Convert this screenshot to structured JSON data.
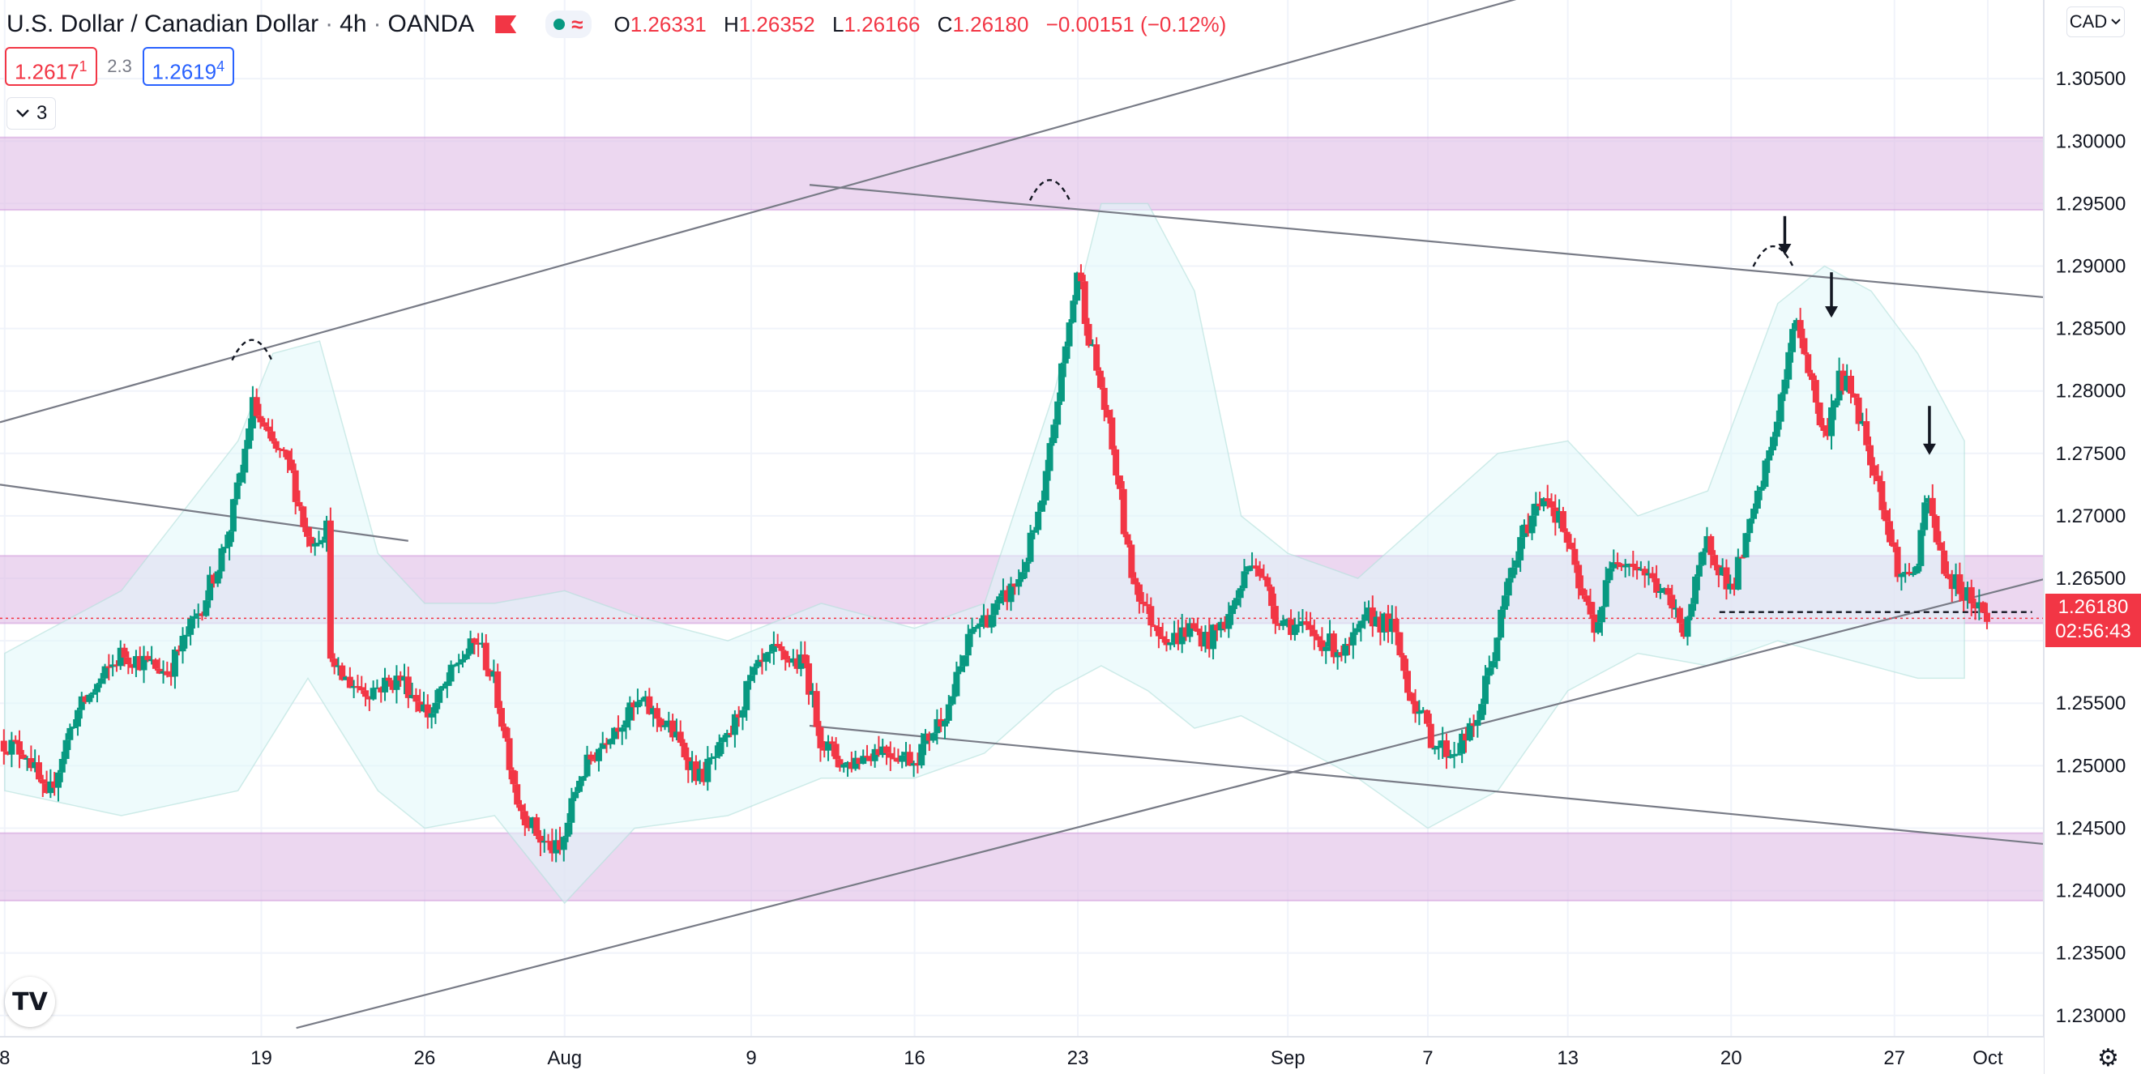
{
  "header": {
    "symbol_title": "U.S. Dollar / Canadian Dollar",
    "interval": "4h",
    "source": "OANDA",
    "ohlc": {
      "open_label": "O",
      "open": "1.26331",
      "high_label": "H",
      "high": "1.26352",
      "low_label": "L",
      "low": "1.26166",
      "close_label": "C",
      "close": "1.26180",
      "change": "−0.00151 (−0.12%)"
    },
    "status_icon": "market-open-dot-icon",
    "wave_icon": "approx-wave-icon"
  },
  "trade": {
    "sell_price": "1.2617",
    "sell_sup": "1",
    "spread": "2.3",
    "buy_price": "1.2619",
    "buy_sup": "4"
  },
  "indicators_toggle": {
    "count": "3",
    "icon": "chevron-down-icon"
  },
  "price_axis": {
    "currency": "CAD",
    "currency_icon": "chevron-down-icon"
  },
  "last_price": {
    "price": "1.26180",
    "countdown": "02:56:43"
  },
  "logo_text": "TV",
  "settings_icon": "gear-icon",
  "colors": {
    "up": "#089981",
    "down": "#f23645",
    "zone": "#e1bee7",
    "band": "#e0f7fa",
    "grid": "#f0f3fa",
    "line": "#787b86"
  },
  "chart_data": {
    "type": "candlestick",
    "title": "U.S. Dollar / Canadian Dollar",
    "ylim": [
      1.2283,
      1.3113
    ],
    "y_ticks": [
      "1.30500",
      "1.30000",
      "1.29500",
      "1.29000",
      "1.28500",
      "1.28000",
      "1.27500",
      "1.27000",
      "1.26500",
      "1.26000",
      "1.25500",
      "1.25000",
      "1.24500",
      "1.24000",
      "1.23500",
      "1.23000"
    ],
    "x_ticks": [
      {
        "label": "8",
        "day": 0
      },
      {
        "label": "19",
        "day": 11
      },
      {
        "label": "26",
        "day": 18
      },
      {
        "label": "Aug",
        "day": 24
      },
      {
        "label": "9",
        "day": 32
      },
      {
        "label": "16",
        "day": 39
      },
      {
        "label": "23",
        "day": 46
      },
      {
        "label": "Sep",
        "day": 55
      },
      {
        "label": "7",
        "day": 61
      },
      {
        "label": "13",
        "day": 67
      },
      {
        "label": "20",
        "day": 74
      },
      {
        "label": "27",
        "day": 81
      },
      {
        "label": "Oct",
        "day": 85
      }
    ],
    "x_range_days": [
      -0.2,
      87.4
    ],
    "anchors": [
      [
        -0.2,
        1.252
      ],
      [
        1.0,
        1.251
      ],
      [
        1.8,
        1.247
      ],
      [
        3.0,
        1.254
      ],
      [
        5.0,
        1.259
      ],
      [
        7.0,
        1.2575
      ],
      [
        8.5,
        1.263
      ],
      [
        9.5,
        1.268
      ],
      [
        10.2,
        1.274
      ],
      [
        10.6,
        1.279
      ],
      [
        11.3,
        1.276
      ],
      [
        12.2,
        1.274
      ],
      [
        13.0,
        1.268
      ],
      [
        13.8,
        1.269
      ],
      [
        14.0,
        1.2575
      ],
      [
        15.5,
        1.256
      ],
      [
        17.0,
        1.257
      ],
      [
        18.2,
        1.254
      ],
      [
        19.5,
        1.2585
      ],
      [
        20.3,
        1.26
      ],
      [
        21.0,
        1.2565
      ],
      [
        22.0,
        1.247
      ],
      [
        23.0,
        1.244
      ],
      [
        23.8,
        1.243
      ],
      [
        24.6,
        1.249
      ],
      [
        26.0,
        1.253
      ],
      [
        27.3,
        1.255
      ],
      [
        28.5,
        1.253
      ],
      [
        29.8,
        1.249
      ],
      [
        31.0,
        1.252
      ],
      [
        32.0,
        1.257
      ],
      [
        33.0,
        1.259
      ],
      [
        34.3,
        1.258
      ],
      [
        35.0,
        1.252
      ],
      [
        36.0,
        1.25
      ],
      [
        37.5,
        1.2515
      ],
      [
        39.0,
        1.2505
      ],
      [
        40.5,
        1.255
      ],
      [
        41.5,
        1.261
      ],
      [
        42.5,
        1.2625
      ],
      [
        43.5,
        1.265
      ],
      [
        44.5,
        1.271
      ],
      [
        45.0,
        1.278
      ],
      [
        45.6,
        1.285
      ],
      [
        46.0,
        1.29
      ],
      [
        46.4,
        1.285
      ],
      [
        47.0,
        1.28
      ],
      [
        47.6,
        1.274
      ],
      [
        48.2,
        1.266
      ],
      [
        49.0,
        1.262
      ],
      [
        50.0,
        1.26
      ],
      [
        50.8,
        1.261
      ],
      [
        51.6,
        1.26
      ],
      [
        52.5,
        1.262
      ],
      [
        53.5,
        1.267
      ],
      [
        54.5,
        1.262
      ],
      [
        55.5,
        1.261
      ],
      [
        56.5,
        1.26
      ],
      [
        57.5,
        1.259
      ],
      [
        58.5,
        1.262
      ],
      [
        59.5,
        1.261
      ],
      [
        60.2,
        1.256
      ],
      [
        61.2,
        1.252
      ],
      [
        62.0,
        1.251
      ],
      [
        63.0,
        1.253
      ],
      [
        63.8,
        1.259
      ],
      [
        64.5,
        1.265
      ],
      [
        65.2,
        1.269
      ],
      [
        66.0,
        1.272
      ],
      [
        66.8,
        1.269
      ],
      [
        67.5,
        1.264
      ],
      [
        68.2,
        1.261
      ],
      [
        69.0,
        1.267
      ],
      [
        70.0,
        1.266
      ],
      [
        71.0,
        1.264
      ],
      [
        72.0,
        1.261
      ],
      [
        73.0,
        1.268
      ],
      [
        74.0,
        1.264
      ],
      [
        74.8,
        1.269
      ],
      [
        75.5,
        1.274
      ],
      [
        76.2,
        1.28
      ],
      [
        76.8,
        1.286
      ],
      [
        77.4,
        1.281
      ],
      [
        78.0,
        1.276
      ],
      [
        78.6,
        1.281
      ],
      [
        79.2,
        1.28
      ],
      [
        79.8,
        1.276
      ],
      [
        80.4,
        1.272
      ],
      [
        80.8,
        1.268
      ],
      [
        81.3,
        1.265
      ],
      [
        82.0,
        1.266
      ],
      [
        82.4,
        1.272
      ],
      [
        82.8,
        1.268
      ],
      [
        83.3,
        1.265
      ],
      [
        84.0,
        1.264
      ],
      [
        84.5,
        1.263
      ],
      [
        85.0,
        1.2618
      ]
    ],
    "band_upper_anchors": [
      [
        0,
        1.259
      ],
      [
        5,
        1.264
      ],
      [
        10,
        1.276
      ],
      [
        11.5,
        1.283
      ],
      [
        13.5,
        1.284
      ],
      [
        16,
        1.267
      ],
      [
        18,
        1.263
      ],
      [
        21,
        1.263
      ],
      [
        24,
        1.264
      ],
      [
        27,
        1.262
      ],
      [
        31,
        1.26
      ],
      [
        35,
        1.263
      ],
      [
        39,
        1.261
      ],
      [
        42,
        1.263
      ],
      [
        45,
        1.28
      ],
      [
        47,
        1.295
      ],
      [
        49,
        1.295
      ],
      [
        51,
        1.288
      ],
      [
        53,
        1.27
      ],
      [
        55,
        1.267
      ],
      [
        58,
        1.265
      ],
      [
        61,
        1.27
      ],
      [
        64,
        1.275
      ],
      [
        67,
        1.276
      ],
      [
        70,
        1.27
      ],
      [
        73,
        1.272
      ],
      [
        76,
        1.287
      ],
      [
        78,
        1.29
      ],
      [
        80,
        1.288
      ],
      [
        82,
        1.283
      ],
      [
        84,
        1.276
      ]
    ],
    "band_lower_anchors": [
      [
        0,
        1.248
      ],
      [
        5,
        1.246
      ],
      [
        10,
        1.248
      ],
      [
        13,
        1.257
      ],
      [
        16,
        1.248
      ],
      [
        18,
        1.245
      ],
      [
        21,
        1.246
      ],
      [
        24,
        1.239
      ],
      [
        27,
        1.245
      ],
      [
        31,
        1.246
      ],
      [
        35,
        1.249
      ],
      [
        39,
        1.249
      ],
      [
        42,
        1.251
      ],
      [
        45,
        1.256
      ],
      [
        47,
        1.258
      ],
      [
        49,
        1.256
      ],
      [
        51,
        1.253
      ],
      [
        53,
        1.254
      ],
      [
        55,
        1.252
      ],
      [
        58,
        1.249
      ],
      [
        61,
        1.245
      ],
      [
        64,
        1.248
      ],
      [
        67,
        1.256
      ],
      [
        70,
        1.259
      ],
      [
        73,
        1.258
      ],
      [
        76,
        1.26
      ],
      [
        78,
        1.259
      ],
      [
        80,
        1.258
      ],
      [
        82,
        1.257
      ],
      [
        84,
        1.257
      ]
    ],
    "zones": [
      {
        "from": 1.2945,
        "to": 1.3003
      },
      {
        "from": 1.2614,
        "to": 1.2668
      },
      {
        "from": 1.2392,
        "to": 1.2446
      }
    ],
    "trendlines": [
      {
        "x1": -0.2,
        "y1": 1.2775,
        "x2": 66.0,
        "y2": 1.312
      },
      {
        "x1": -0.2,
        "y1": 1.2725,
        "x2": 17.3,
        "y2": 1.268
      },
      {
        "x1": 34.5,
        "y1": 1.2965,
        "x2": 89.2,
        "y2": 1.2872
      },
      {
        "x1": 34.5,
        "y1": 1.2532,
        "x2": 88.7,
        "y2": 1.2435
      },
      {
        "x1": 12.5,
        "y1": 1.229,
        "x2": 91.3,
        "y2": 1.2668
      }
    ],
    "last_price": 1.2618,
    "dashed_level": {
      "from": 73.5,
      "to": 86.9,
      "y": 1.2623
    },
    "arcs": [
      {
        "x": 10.6,
        "y": 1.2835,
        "w": 1.7
      },
      {
        "x": 44.8,
        "y": 1.2963,
        "w": 1.7
      },
      {
        "x": 75.8,
        "y": 1.291,
        "w": 1.7
      }
    ],
    "arrows": [
      {
        "x": 76.3,
        "y1": 1.294,
        "y2": 1.291
      },
      {
        "x": 78.3,
        "y1": 1.2895,
        "y2": 1.286
      },
      {
        "x": 82.5,
        "y1": 1.2788,
        "y2": 1.275
      }
    ]
  }
}
